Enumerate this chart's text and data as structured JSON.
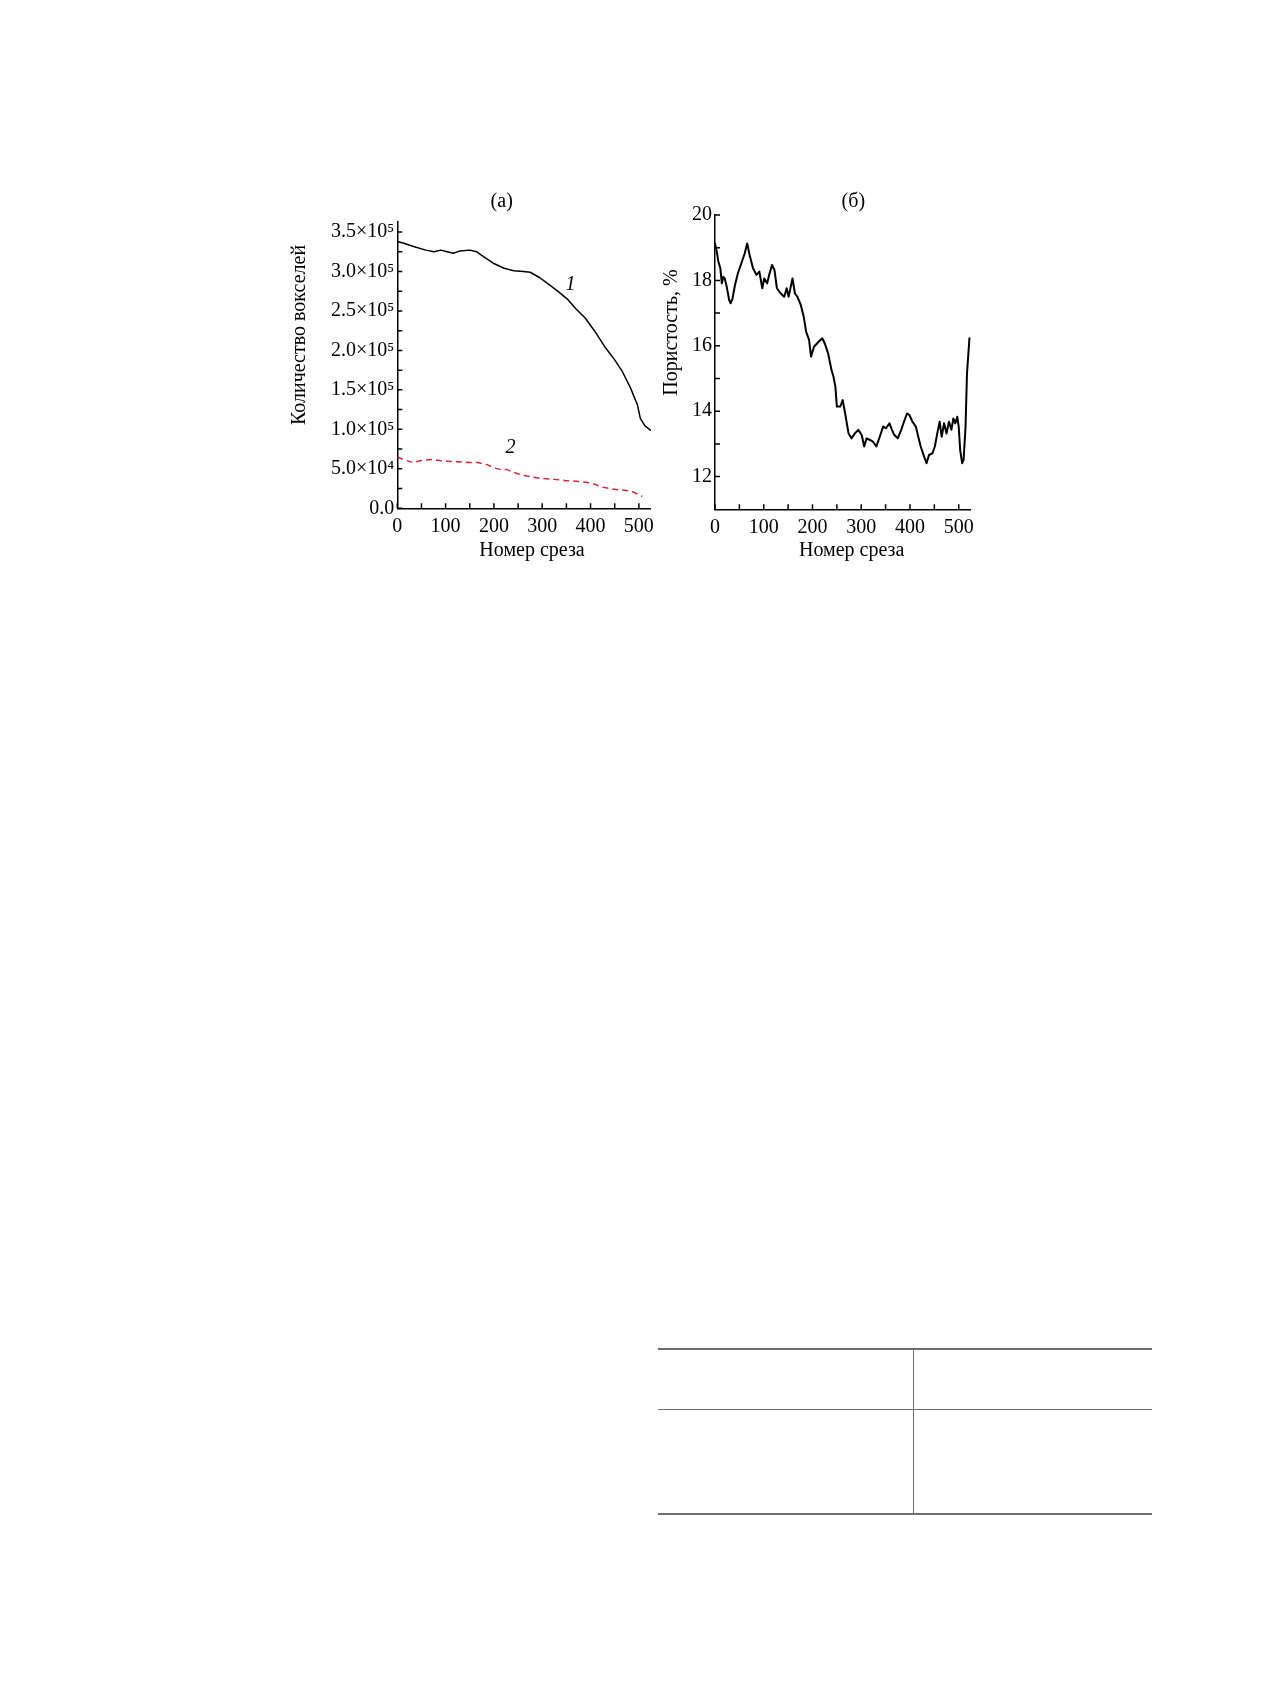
{
  "chart_data": [
    {
      "type": "line",
      "title": "(а)",
      "xlabel": "Номер среза",
      "ylabel": "Количество вокселей",
      "xlim": [
        0,
        525
      ],
      "xticks": [
        0,
        {
          "value": 50,
          "label": null
        },
        100,
        {
          "value": 150,
          "label": null
        },
        200,
        {
          "value": 250,
          "label": null
        },
        300,
        {
          "value": 350,
          "label": null
        },
        400,
        {
          "value": 450,
          "label": null
        },
        500
      ],
      "ylim": [
        0,
        363000
      ],
      "yticks": [
        {
          "value": 0,
          "label": "0.0"
        },
        {
          "value": 25000,
          "label": null
        },
        {
          "value": 50000,
          "label": "5.0×10⁴"
        },
        {
          "value": 75000,
          "label": null
        },
        {
          "value": 100000,
          "label": "1.0×10⁵"
        },
        {
          "value": 125000,
          "label": null
        },
        {
          "value": 150000,
          "label": "1.5×10⁵"
        },
        {
          "value": 175000,
          "label": null
        },
        {
          "value": 200000,
          "label": "2.0×10⁵"
        },
        {
          "value": 225000,
          "label": null
        },
        {
          "value": 250000,
          "label": "2.5×10⁵"
        },
        {
          "value": 275000,
          "label": null
        },
        {
          "value": 300000,
          "label": "3.0×10⁵"
        },
        {
          "value": 325000,
          "label": null
        },
        {
          "value": 350000,
          "label": "3.5×10⁵"
        }
      ],
      "series": [
        {
          "name": "1",
          "color": "#000000",
          "line_style": "solid",
          "x": [
            0,
            12,
            32,
            59,
            76,
            90,
            103,
            116,
            130,
            150,
            164,
            180,
            200,
            221,
            241,
            261,
            275,
            295,
            315,
            332,
            352,
            369,
            389,
            409,
            429,
            450,
            466,
            483,
            497,
            503,
            513,
            524
          ],
          "values": [
            338000,
            336000,
            332000,
            327000,
            325000,
            327000,
            325000,
            323000,
            326000,
            327000,
            325000,
            318000,
            310000,
            304000,
            301000,
            300000,
            299000,
            292000,
            283000,
            275000,
            265000,
            253000,
            241000,
            224000,
            205000,
            188000,
            173000,
            152000,
            131000,
            114000,
            104000,
            99000
          ]
        },
        {
          "name": "2",
          "color": "#d9263b",
          "line_style": "dashed",
          "x": [
            0,
            16,
            32,
            53,
            73,
            93,
            120,
            147,
            167,
            187,
            201,
            214,
            227,
            248,
            268,
            295,
            322,
            349,
            376,
            402,
            423,
            450,
            470,
            487,
            507
          ],
          "values": [
            65000,
            61000,
            58000,
            61000,
            62000,
            60000,
            59000,
            58000,
            58000,
            55000,
            51000,
            49000,
            49000,
            44000,
            41000,
            38000,
            37000,
            35000,
            34000,
            32000,
            27000,
            24000,
            23000,
            21000,
            15000
          ]
        }
      ]
    },
    {
      "type": "line",
      "title": "(б)",
      "xlabel": "Номер среза",
      "ylabel": "Пористость, %",
      "xlim": [
        0,
        525
      ],
      "xticks": [
        0,
        {
          "value": 50,
          "label": null
        },
        100,
        {
          "value": 150,
          "label": null
        },
        200,
        {
          "value": 250,
          "label": null
        },
        300,
        {
          "value": 350,
          "label": null
        },
        400,
        {
          "value": 450,
          "label": null
        },
        500
      ],
      "ylim": [
        11,
        20
      ],
      "yticks": [
        12,
        {
          "value": 13,
          "label": null
        },
        14,
        {
          "value": 15,
          "label": null
        },
        16,
        {
          "value": 17,
          "label": null
        },
        18,
        {
          "value": 19,
          "label": null
        },
        20
      ],
      "series": [
        {
          "color": "#000000",
          "line_style": "solid",
          "x": [
            0,
            3,
            7,
            11,
            14,
            17,
            20,
            24,
            29,
            32,
            36,
            41,
            47,
            54,
            61,
            66,
            71,
            78,
            85,
            91,
            97,
            101,
            107,
            112,
            117,
            122,
            127,
            135,
            142,
            147,
            151,
            159,
            164,
            169,
            176,
            182,
            187,
            193,
            197,
            203,
            213,
            220,
            225,
            232,
            239,
            243,
            247,
            250,
            257,
            262,
            267,
            274,
            280,
            287,
            294,
            301,
            306,
            311,
            318,
            324,
            331,
            338,
            345,
            351,
            358,
            363,
            368,
            375,
            382,
            389,
            394,
            399,
            405,
            412,
            417,
            422,
            429,
            434,
            439,
            446,
            451,
            456,
            461,
            465,
            470,
            475,
            480,
            485,
            489,
            493,
            497,
            500,
            503,
            507,
            510,
            514,
            517,
            522
          ],
          "values": [
            19.13,
            18.93,
            18.57,
            18.37,
            17.91,
            18.11,
            18.06,
            17.81,
            17.4,
            17.3,
            17.45,
            17.86,
            18.22,
            18.52,
            18.83,
            19.13,
            18.78,
            18.37,
            18.17,
            18.27,
            17.76,
            18.06,
            17.91,
            18.22,
            18.47,
            18.32,
            17.76,
            17.6,
            17.5,
            17.76,
            17.5,
            18.06,
            17.6,
            17.5,
            17.25,
            16.89,
            16.43,
            16.18,
            15.67,
            15.97,
            16.13,
            16.23,
            16.08,
            15.77,
            15.26,
            15.06,
            14.75,
            14.14,
            14.14,
            14.34,
            13.93,
            13.32,
            13.17,
            13.32,
            13.43,
            13.27,
            12.92,
            13.17,
            13.12,
            13.07,
            12.92,
            13.22,
            13.53,
            13.48,
            13.63,
            13.43,
            13.27,
            13.17,
            13.43,
            13.73,
            13.93,
            13.88,
            13.68,
            13.53,
            13.22,
            12.92,
            12.61,
            12.41,
            12.66,
            12.71,
            12.92,
            13.32,
            13.68,
            13.22,
            13.63,
            13.32,
            13.68,
            13.43,
            13.78,
            13.63,
            13.83,
            13.53,
            12.81,
            12.41,
            12.51,
            13.53,
            15.16,
            16.23
          ]
        }
      ]
    }
  ]
}
